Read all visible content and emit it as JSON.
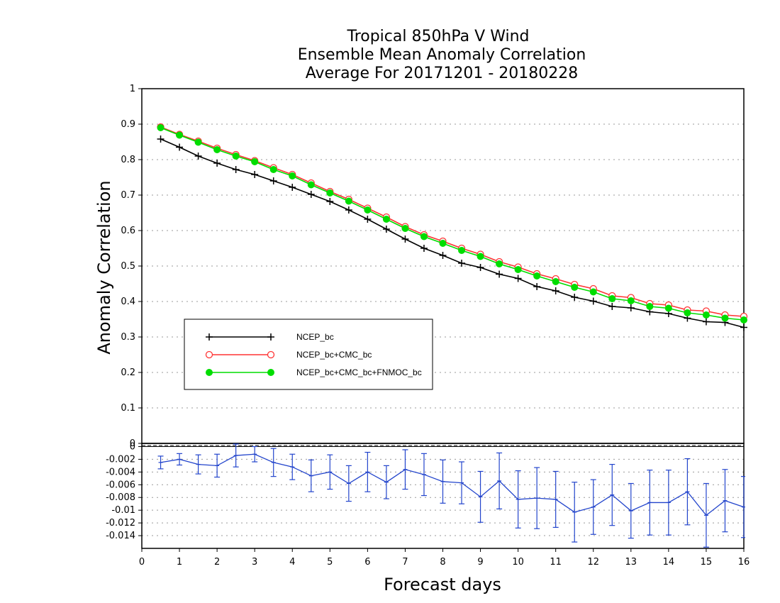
{
  "chart_data": [
    {
      "type": "line",
      "title": [
        "Tropical 850hPa V Wind",
        "Ensemble Mean Anomaly Correlation",
        "Average For 20171201 - 20180228"
      ],
      "xlabel": "Forecast days",
      "ylabel": "Anomaly Correlation",
      "xlim": [
        0,
        16
      ],
      "ylim": [
        0,
        1
      ],
      "xticks": [
        "0",
        "1",
        "2",
        "3",
        "4",
        "5",
        "6",
        "7",
        "8",
        "9",
        "10",
        "11",
        "12",
        "13",
        "14",
        "15",
        "16"
      ],
      "yticks": [
        "0",
        "0.1",
        "0.2",
        "0.3",
        "0.4",
        "0.5",
        "0.6",
        "0.7",
        "0.8",
        "0.9",
        "1"
      ],
      "grid": true,
      "legend_position": "lower-left",
      "x": [
        0.5,
        1,
        1.5,
        2,
        2.5,
        3,
        3.5,
        4,
        4.5,
        5,
        5.5,
        6,
        6.5,
        7,
        7.5,
        8,
        8.5,
        9,
        9.5,
        10,
        10.5,
        11,
        11.5,
        12,
        12.5,
        13,
        13.5,
        14,
        14.5,
        15,
        15.5,
        16
      ],
      "series": [
        {
          "name": "NCEP_bc",
          "color": "#000000",
          "marker": "plus",
          "values": [
            0.858,
            0.835,
            0.81,
            0.79,
            0.772,
            0.758,
            0.74,
            0.722,
            0.702,
            0.682,
            0.658,
            0.632,
            0.604,
            0.576,
            0.55,
            0.53,
            0.508,
            0.496,
            0.477,
            0.465,
            0.442,
            0.43,
            0.412,
            0.401,
            0.386,
            0.382,
            0.371,
            0.366,
            0.353,
            0.343,
            0.341,
            0.327
          ]
        },
        {
          "name": "NCEP_bc+CMC_bc",
          "color": "#ff3333",
          "marker": "open-circle",
          "values": [
            0.892,
            0.871,
            0.852,
            0.832,
            0.814,
            0.797,
            0.777,
            0.758,
            0.734,
            0.71,
            0.688,
            0.663,
            0.638,
            0.611,
            0.588,
            0.57,
            0.55,
            0.533,
            0.512,
            0.497,
            0.478,
            0.464,
            0.448,
            0.436,
            0.416,
            0.411,
            0.394,
            0.39,
            0.376,
            0.373,
            0.362,
            0.358
          ]
        },
        {
          "name": "NCEP_bc+CMC_bc+FNMOC_bc",
          "color": "#00dd00",
          "marker": "filled-circle",
          "values": [
            0.89,
            0.869,
            0.849,
            0.828,
            0.81,
            0.794,
            0.772,
            0.754,
            0.729,
            0.706,
            0.683,
            0.658,
            0.632,
            0.606,
            0.583,
            0.564,
            0.544,
            0.527,
            0.506,
            0.49,
            0.472,
            0.456,
            0.44,
            0.427,
            0.408,
            0.402,
            0.386,
            0.381,
            0.368,
            0.362,
            0.353,
            0.348
          ]
        }
      ]
    },
    {
      "type": "line",
      "subtype": "difference-with-error-bars",
      "xlim": [
        0,
        16
      ],
      "ylim": [
        -0.016,
        0.0005
      ],
      "yticks": [
        "0",
        "-0.002",
        "-0.004",
        "-0.006",
        "-0.008",
        "-0.01",
        "-0.012",
        "-0.014"
      ],
      "grid": true,
      "color": "#2244cc",
      "x": [
        0.5,
        1,
        1.5,
        2,
        2.5,
        3,
        3.5,
        4,
        4.5,
        5,
        5.5,
        6,
        6.5,
        7,
        7.5,
        8,
        8.5,
        9,
        9.5,
        10,
        10.5,
        11,
        11.5,
        12,
        12.5,
        13,
        13.5,
        14,
        14.5,
        15,
        15.5,
        16
      ],
      "values": [
        -0.0025,
        -0.002,
        -0.0028,
        -0.003,
        -0.0014,
        -0.0012,
        -0.0025,
        -0.0032,
        -0.0046,
        -0.004,
        -0.0058,
        -0.004,
        -0.0056,
        -0.0036,
        -0.0044,
        -0.0055,
        -0.0057,
        -0.0079,
        -0.0054,
        -0.0083,
        -0.0081,
        -0.0083,
        -0.0103,
        -0.0095,
        -0.0076,
        -0.0101,
        -0.0088,
        -0.0088,
        -0.0071,
        -0.0108,
        -0.0085,
        -0.0095
      ],
      "errors": [
        0.001,
        0.0009,
        0.0015,
        0.0018,
        0.0018,
        0.0012,
        0.0022,
        0.002,
        0.0025,
        0.0027,
        0.0028,
        0.0031,
        0.0026,
        0.0031,
        0.0033,
        0.0034,
        0.0033,
        0.004,
        0.0044,
        0.0045,
        0.0048,
        0.0044,
        0.0047,
        0.0043,
        0.0048,
        0.0043,
        0.0051,
        0.0051,
        0.0052,
        0.005,
        0.0049,
        0.0048
      ]
    }
  ]
}
